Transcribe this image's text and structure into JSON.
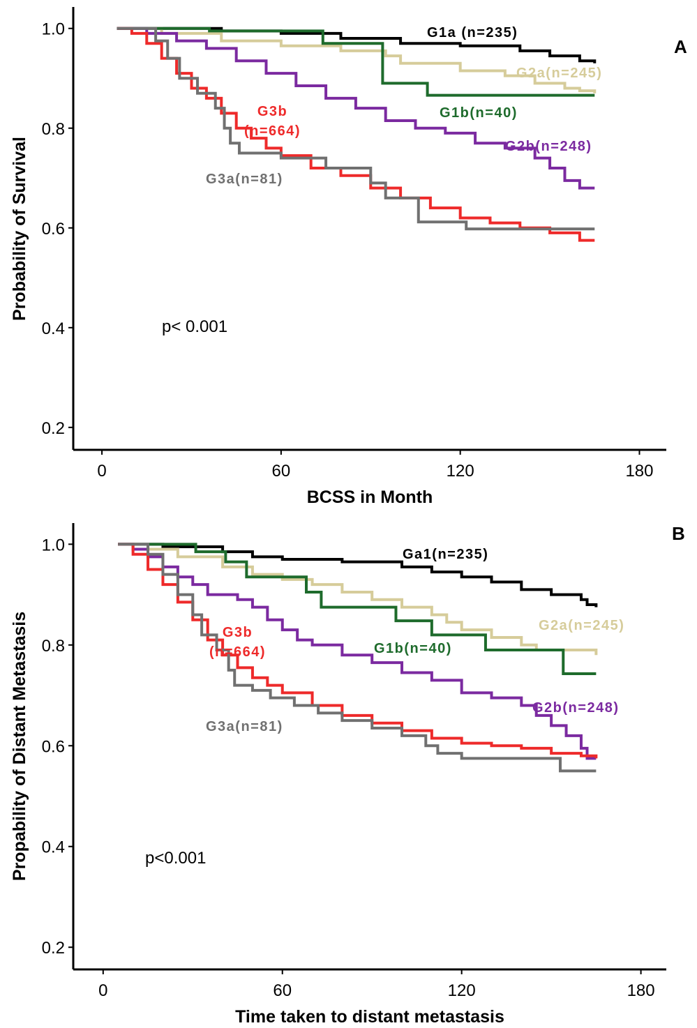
{
  "chart_data": [
    {
      "type": "line",
      "step": true,
      "panel_label": "A",
      "annotation": "p< 0.001",
      "x_label": "BCSS in Month",
      "y_label": "Probability of Survival",
      "xlim": [
        -9.6,
        189
      ],
      "ylim": [
        0.155,
        1.043
      ],
      "xticks": [
        0,
        60,
        120,
        180
      ],
      "yticks": [
        {
          "value": 1,
          "label": "1.0"
        },
        0.8,
        0.6,
        0.4,
        0.2
      ],
      "series": [
        {
          "name": "G1a (n=235)",
          "color": "#000000",
          "x": [
            5,
            40,
            60,
            80,
            100,
            120,
            140,
            150,
            160,
            165
          ],
          "values": [
            1,
            0.995,
            0.99,
            0.98,
            0.97,
            0.965,
            0.955,
            0.945,
            0.935,
            0.93
          ]
        },
        {
          "name": "G2a(n=245)",
          "color": "#d6cc9a",
          "x": [
            5,
            20,
            40,
            60,
            80,
            95,
            100,
            120,
            135,
            145,
            155,
            160,
            165
          ],
          "values": [
            1,
            0.99,
            0.975,
            0.965,
            0.955,
            0.945,
            0.93,
            0.915,
            0.905,
            0.89,
            0.88,
            0.875,
            0.87
          ]
        },
        {
          "name": "G1b(n=40)",
          "color": "#1e6b2c",
          "x": [
            5,
            36,
            74,
            94,
            109,
            165
          ],
          "values": [
            1,
            0.995,
            0.97,
            0.89,
            0.866,
            0.866
          ]
        },
        {
          "name": "G2b(n=248)",
          "color": "#7b2aa0",
          "x": [
            5,
            15,
            25,
            35,
            45,
            55,
            65,
            75,
            85,
            95,
            105,
            115,
            125,
            135,
            145,
            150,
            155,
            160,
            165
          ],
          "values": [
            1,
            0.99,
            0.975,
            0.96,
            0.935,
            0.91,
            0.885,
            0.86,
            0.84,
            0.815,
            0.8,
            0.79,
            0.77,
            0.76,
            0.74,
            0.72,
            0.695,
            0.68,
            0.68
          ]
        },
        {
          "name": "G3b\n(n=664)",
          "color": "#ee2a2a",
          "x": [
            5,
            10,
            15,
            20,
            25,
            30,
            35,
            40,
            45,
            50,
            55,
            60,
            70,
            80,
            90,
            100,
            110,
            120,
            130,
            140,
            150,
            160,
            165
          ],
          "values": [
            1,
            0.99,
            0.97,
            0.94,
            0.91,
            0.88,
            0.86,
            0.83,
            0.8,
            0.78,
            0.76,
            0.745,
            0.72,
            0.705,
            0.68,
            0.66,
            0.64,
            0.62,
            0.61,
            0.6,
            0.59,
            0.575,
            0.575
          ]
        },
        {
          "name": "G3a(n=81)",
          "color": "#707070",
          "x": [
            5,
            18,
            22,
            26,
            32,
            38,
            41,
            43,
            46,
            60,
            75,
            90,
            95,
            106,
            122,
            165
          ],
          "values": [
            1,
            0.975,
            0.94,
            0.9,
            0.87,
            0.84,
            0.8,
            0.77,
            0.75,
            0.74,
            0.72,
            0.69,
            0.66,
            0.612,
            0.598,
            0.598
          ]
        }
      ]
    },
    {
      "type": "line",
      "step": true,
      "panel_label": "B",
      "annotation": "p<0.001",
      "x_label": "Time taken to distant metastasis",
      "y_label": "Propability of Distant Metastasis",
      "xlim": [
        -10.0,
        188.5
      ],
      "ylim": [
        0.156,
        1.042
      ],
      "xticks": [
        0,
        60,
        120,
        180
      ],
      "yticks": [
        {
          "value": 1,
          "label": "1.0"
        },
        0.8,
        0.6,
        0.4,
        0.2
      ],
      "series": [
        {
          "name": "Ga1(n=235)",
          "color": "#000000",
          "x": [
            5,
            20,
            40,
            50,
            60,
            80,
            100,
            110,
            120,
            130,
            140,
            150,
            160,
            162,
            165
          ],
          "values": [
            1,
            0.995,
            0.985,
            0.975,
            0.97,
            0.965,
            0.955,
            0.945,
            0.935,
            0.925,
            0.91,
            0.9,
            0.89,
            0.88,
            0.875
          ]
        },
        {
          "name": "G2a(n=245)",
          "color": "#d6cc9a",
          "x": [
            5,
            15,
            25,
            40,
            50,
            60,
            70,
            80,
            90,
            100,
            110,
            115,
            120,
            130,
            140,
            145,
            160,
            165
          ],
          "values": [
            1,
            0.99,
            0.975,
            0.955,
            0.94,
            0.93,
            0.92,
            0.905,
            0.89,
            0.875,
            0.86,
            0.845,
            0.83,
            0.815,
            0.8,
            0.79,
            0.79,
            0.78
          ]
        },
        {
          "name": "G1b(n=40)",
          "color": "#1e6b2c",
          "x": [
            5,
            31,
            41,
            48,
            68,
            73,
            98,
            110,
            128,
            154,
            165
          ],
          "values": [
            1,
            0.985,
            0.965,
            0.935,
            0.905,
            0.875,
            0.848,
            0.82,
            0.79,
            0.743,
            0.743
          ]
        },
        {
          "name": "G2b(n=248)",
          "color": "#7b2aa0",
          "x": [
            5,
            10,
            15,
            20,
            25,
            30,
            35,
            45,
            50,
            55,
            60,
            65,
            70,
            80,
            90,
            100,
            110,
            120,
            130,
            140,
            145,
            150,
            155,
            160,
            162,
            165
          ],
          "values": [
            1,
            0.99,
            0.975,
            0.955,
            0.935,
            0.92,
            0.9,
            0.89,
            0.875,
            0.85,
            0.83,
            0.81,
            0.8,
            0.78,
            0.765,
            0.745,
            0.73,
            0.705,
            0.695,
            0.68,
            0.66,
            0.64,
            0.62,
            0.595,
            0.575,
            0.575
          ]
        },
        {
          "name": "G3b\n(n=664)",
          "color": "#ee2a2a",
          "x": [
            5,
            10,
            15,
            20,
            25,
            30,
            35,
            40,
            45,
            50,
            55,
            60,
            70,
            80,
            90,
            100,
            110,
            120,
            130,
            140,
            150,
            160,
            165
          ],
          "values": [
            1,
            0.98,
            0.95,
            0.92,
            0.885,
            0.85,
            0.81,
            0.78,
            0.755,
            0.735,
            0.72,
            0.705,
            0.68,
            0.66,
            0.645,
            0.63,
            0.615,
            0.605,
            0.6,
            0.595,
            0.585,
            0.58,
            0.575
          ]
        },
        {
          "name": "G3a(n=81)",
          "color": "#707070",
          "x": [
            5,
            15,
            20,
            25,
            30,
            33,
            38,
            42,
            44,
            50,
            56,
            64,
            72,
            80,
            90,
            100,
            108,
            112,
            120,
            150,
            153,
            165
          ],
          "values": [
            1,
            0.98,
            0.94,
            0.9,
            0.86,
            0.82,
            0.79,
            0.75,
            0.72,
            0.71,
            0.695,
            0.68,
            0.665,
            0.65,
            0.635,
            0.62,
            0.6,
            0.585,
            0.575,
            0.575,
            0.55,
            0.55
          ]
        }
      ]
    }
  ]
}
